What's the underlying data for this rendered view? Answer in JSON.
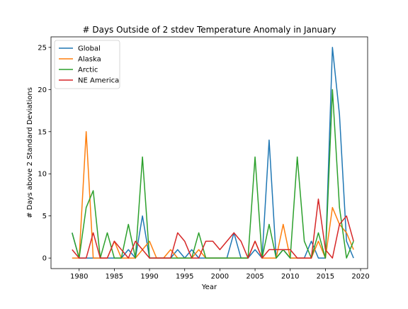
{
  "chart_data": {
    "type": "line",
    "title": "# Days Outside of 2 stdev Temperature Anomaly in January",
    "xlabel": "Year",
    "ylabel": "# Days above 2 Standard Deviations",
    "xlim": [
      1976,
      2021
    ],
    "ylim": [
      -1.25,
      26.25
    ],
    "xticks": [
      1980,
      1985,
      1990,
      1995,
      2000,
      2005,
      2010,
      2015,
      2020
    ],
    "yticks": [
      0,
      5,
      10,
      15,
      20,
      25
    ],
    "grid": false,
    "legend_position": "top-left",
    "x": [
      1979,
      1980,
      1981,
      1982,
      1983,
      1984,
      1985,
      1986,
      1987,
      1988,
      1989,
      1990,
      1991,
      1992,
      1993,
      1994,
      1995,
      1996,
      1997,
      1998,
      1999,
      2000,
      2001,
      2002,
      2003,
      2004,
      2005,
      2006,
      2007,
      2008,
      2009,
      2010,
      2011,
      2012,
      2013,
      2014,
      2015,
      2016,
      2017,
      2018,
      2019
    ],
    "series": [
      {
        "name": "Global",
        "color": "#1f77b4",
        "values": [
          3,
          0,
          0,
          0,
          0,
          0,
          0,
          0,
          1,
          0,
          5,
          0,
          0,
          0,
          0,
          1,
          0,
          1,
          0,
          0,
          0,
          0,
          0,
          3,
          0,
          0,
          1,
          0,
          14,
          0,
          1,
          0,
          0,
          0,
          2,
          0,
          0,
          25,
          17,
          2,
          0
        ]
      },
      {
        "name": "Alaska",
        "color": "#ff7f0e",
        "values": [
          0,
          0,
          15,
          0,
          0,
          0,
          2,
          0,
          0,
          0,
          1,
          2,
          0,
          0,
          1,
          0,
          0,
          0,
          1,
          0,
          0,
          0,
          0,
          0,
          0,
          0,
          2,
          0,
          0,
          0,
          4,
          0,
          0,
          0,
          0,
          2,
          0,
          6,
          4,
          3,
          1
        ]
      },
      {
        "name": "Arctic",
        "color": "#2ca02c",
        "values": [
          3,
          0,
          6,
          8,
          0,
          3,
          0,
          0,
          4,
          0,
          12,
          0,
          0,
          0,
          0,
          0,
          0,
          0,
          3,
          0,
          0,
          0,
          0,
          0,
          0,
          0,
          12,
          0,
          4,
          0,
          1,
          0,
          12,
          2,
          0,
          3,
          0,
          20,
          6,
          0,
          2
        ]
      },
      {
        "name": "NE America",
        "color": "#d62728",
        "values": [
          1,
          0,
          0,
          3,
          0,
          0,
          2,
          1,
          0,
          2,
          1,
          0,
          0,
          0,
          0,
          3,
          2,
          0,
          0,
          2,
          2,
          1,
          2,
          3,
          2,
          0,
          2,
          0,
          1,
          1,
          1,
          1,
          0,
          0,
          0,
          7,
          1,
          0,
          4,
          5,
          2
        ]
      }
    ]
  }
}
